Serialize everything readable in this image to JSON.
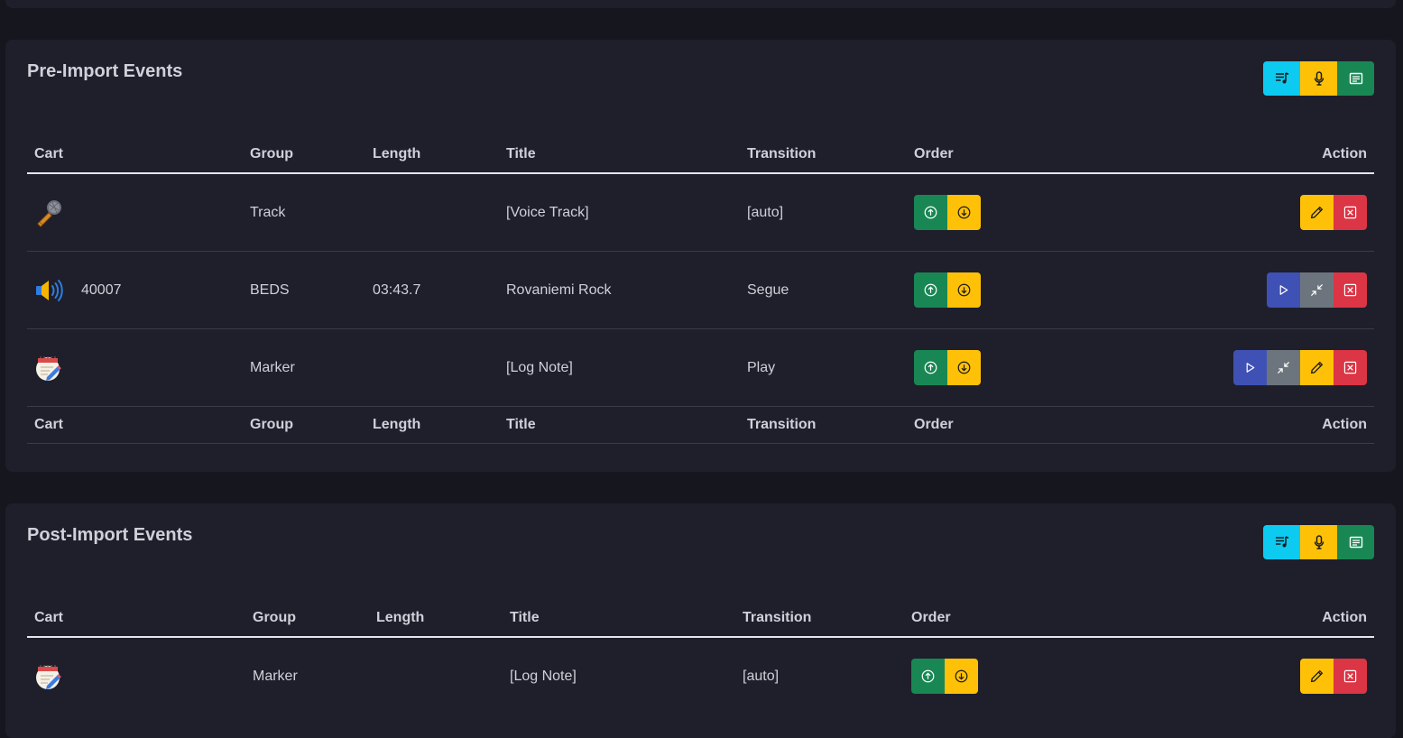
{
  "pre_import": {
    "title": "Pre-Import Events",
    "columns": {
      "cart": "Cart",
      "group": "Group",
      "length": "Length",
      "title": "Title",
      "transition": "Transition",
      "order": "Order",
      "action": "Action"
    },
    "rows": [
      {
        "icon": "microphone-icon",
        "cart": "",
        "group": "Track",
        "length": "",
        "title": "[Voice Track]",
        "transition": "[auto]"
      },
      {
        "icon": "speaker-icon",
        "cart": "40007",
        "group": "BEDS",
        "length": "03:43.7",
        "title": "Rovaniemi Rock",
        "transition": "Segue"
      },
      {
        "icon": "memo-icon",
        "cart": "",
        "group": "Marker",
        "length": "",
        "title": "[Log Note]",
        "transition": "Play"
      }
    ]
  },
  "post_import": {
    "title": "Post-Import Events",
    "columns": {
      "cart": "Cart",
      "group": "Group",
      "length": "Length",
      "title": "Title",
      "transition": "Transition",
      "order": "Order",
      "action": "Action"
    },
    "rows": [
      {
        "icon": "memo-icon",
        "cart": "",
        "group": "Marker",
        "length": "",
        "title": "[Log Note]",
        "transition": "[auto]"
      }
    ]
  },
  "colors": {
    "background": "#16161f",
    "card": "#1e1f2b",
    "cyan": "#0dcaf0",
    "yellow": "#ffc107",
    "green": "#198754",
    "red": "#dc3545",
    "blue": "#3f51b5",
    "gray": "#6c757d"
  }
}
